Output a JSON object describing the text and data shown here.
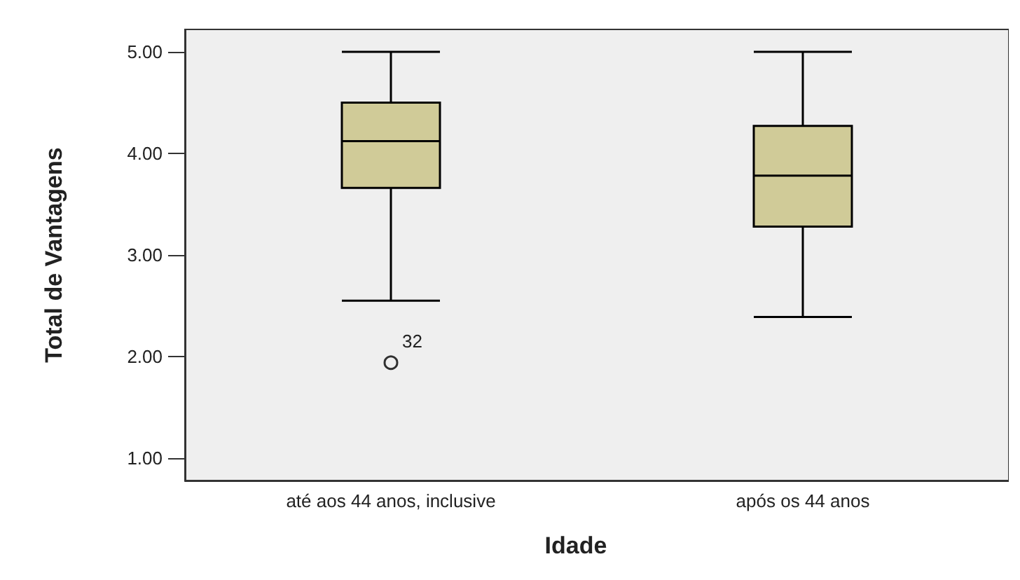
{
  "chart_data": {
    "type": "box",
    "xlabel": "Idade",
    "ylabel": "Total de Vantagens",
    "categories": [
      "até aos 44 anos, inclusive",
      "após os 44 anos"
    ],
    "color": "#d0cb98",
    "boxes": [
      {
        "low": 2.55,
        "q1": 3.66,
        "median": 4.12,
        "q3": 4.5,
        "high": 5.0,
        "outliers": [
          1.94
        ]
      },
      {
        "low": 2.39,
        "q1": 3.28,
        "median": 3.78,
        "q3": 4.27,
        "high": 5.0
      }
    ],
    "ylim": [
      0.78,
      5.22
    ],
    "yticks": [
      {
        "value": 1,
        "label": "1.00"
      },
      {
        "value": 2,
        "label": "2.00"
      },
      {
        "value": 3,
        "label": "3.00"
      },
      {
        "value": 4,
        "label": "4.00"
      },
      {
        "value": 5,
        "label": "5.00"
      }
    ],
    "grid": false,
    "annotations": [
      "32"
    ]
  }
}
